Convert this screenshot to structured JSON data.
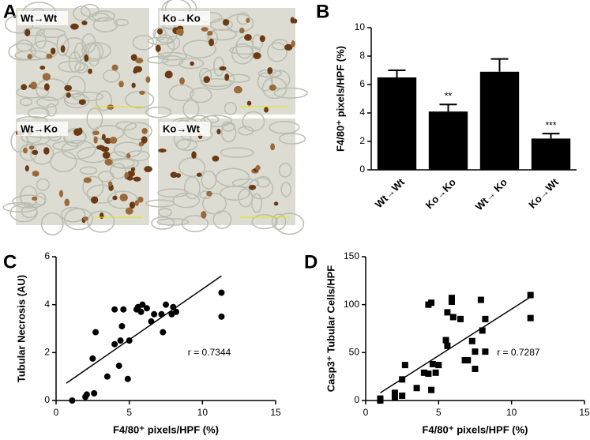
{
  "panel_labels": [
    "A",
    "B",
    "C",
    "D"
  ],
  "micrographs": [
    {
      "label": "Wt→Wt"
    },
    {
      "label": "Ko→Ko"
    },
    {
      "label": "Wt→Ko"
    },
    {
      "label": "Ko→Wt"
    }
  ],
  "chart_data": [
    {
      "type": "bar",
      "ylabel": "F4/80⁺ pixels/HPF (%)",
      "categories": [
        "Wt→Wt",
        "Ko→Ko",
        "Wt→ Ko",
        "Ko→Wt"
      ],
      "values": [
        6.5,
        4.1,
        6.9,
        2.2
      ],
      "errors": [
        0.5,
        0.5,
        0.9,
        0.35
      ],
      "significance": [
        null,
        "**",
        null,
        "***"
      ],
      "color": "#000000",
      "ylim": [
        0,
        10
      ],
      "yticks": [
        0,
        2,
        4,
        6,
        8,
        10
      ]
    },
    {
      "type": "scatter",
      "xlabel": "F4/80⁺ pixels/HPF (%)",
      "ylabel": "Tubular Necrosis (AU)",
      "marker": "circle",
      "color": "#000000",
      "annotation": "r = 0.7344",
      "x": [
        1.1,
        2.0,
        2.1,
        2.6,
        2.5,
        2.7,
        3.5,
        4.0,
        4.0,
        4.3,
        4.4,
        4.5,
        4.6,
        4.9,
        5.0,
        5.5,
        5.6,
        5.8,
        5.9,
        6.2,
        6.5,
        6.7,
        7.3,
        7.2,
        7.5,
        7.9,
        8.0,
        8.2,
        11.3,
        11.3
      ],
      "y": [
        0,
        0.15,
        0.25,
        0.3,
        1.75,
        2.85,
        1.0,
        2.35,
        3.8,
        1.45,
        2.5,
        3.1,
        3.8,
        0.9,
        2.5,
        3.8,
        3.9,
        3.7,
        4.0,
        3.85,
        3.3,
        3.6,
        2.85,
        3.6,
        4.0,
        3.6,
        3.9,
        3.7,
        4.5,
        3.5
      ],
      "fit_line": {
        "x": [
          0.7,
          11.3
        ],
        "y": [
          0.72,
          5.2
        ]
      },
      "xlim": [
        0,
        15
      ],
      "xticks": [
        0,
        5,
        10,
        15
      ],
      "ylim": [
        0,
        6
      ],
      "yticks": [
        0,
        2,
        4,
        6
      ]
    },
    {
      "type": "scatter",
      "xlabel": "F4/80⁺ pixels/HPF (%)",
      "ylabel": "Casp3⁺ Tubular Cells/HPF",
      "marker": "square",
      "color": "#000000",
      "annotation": "r = 0.7287",
      "x": [
        1.0,
        1.0,
        2.0,
        2.0,
        2.5,
        2.5,
        2.7,
        3.5,
        4.0,
        4.3,
        4.3,
        4.5,
        4.5,
        4.6,
        4.8,
        5.0,
        5.5,
        5.6,
        5.6,
        5.9,
        5.9,
        6.0,
        6.5,
        6.8,
        7.0,
        7.3,
        7.5,
        7.5,
        7.9,
        8.0,
        8.2,
        8.2,
        11.3,
        11.3
      ],
      "y": [
        0,
        2,
        3,
        8,
        5,
        22,
        37,
        13,
        29,
        28,
        100,
        102,
        11,
        38,
        29,
        37,
        63,
        57,
        92,
        107,
        103,
        87,
        85,
        42,
        42,
        62,
        33,
        51,
        105,
        73,
        85,
        51,
        110,
        86
      ],
      "fit_line": {
        "x": [
          1.0,
          11.3
        ],
        "y": [
          8,
          108
        ]
      },
      "xlim": [
        0,
        15
      ],
      "xticks": [
        0,
        5,
        10,
        15
      ],
      "ylim": [
        0,
        150
      ],
      "yticks": [
        0,
        50,
        100,
        150
      ]
    }
  ]
}
